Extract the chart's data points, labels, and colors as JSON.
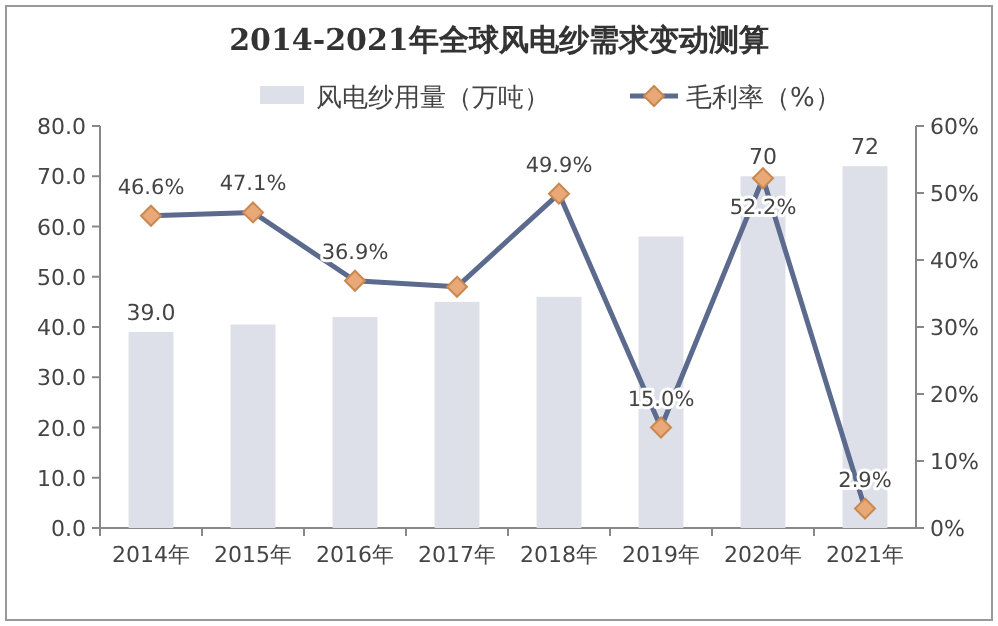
{
  "chart_data": {
    "type": "bar",
    "title": "2014-2021年全球风电纱需求变动测算",
    "legend": "top",
    "marker": "diamond",
    "categories": [
      "2014年",
      "2015年",
      "2016年",
      "2017年",
      "2018年",
      "2019年",
      "2020年",
      "2021年"
    ],
    "series": [
      {
        "name": "风电纱用量（万吨）",
        "color": "#dde0e8",
        "values": [
          39.0,
          40.5,
          42.0,
          45.0,
          46.0,
          58.0,
          70,
          72
        ],
        "value_labels": [
          "39.0",
          null,
          null,
          null,
          null,
          null,
          "70",
          "72"
        ]
      },
      {
        "name": "毛利率（%）",
        "type": "line",
        "axis": "y2",
        "color": "#5c6a8e",
        "values": [
          46.6,
          47.1,
          36.9,
          36.0,
          49.9,
          15.0,
          52.2,
          2.9
        ],
        "value_labels": [
          "46.6%",
          "47.1%",
          "36.9%",
          null,
          "49.9%",
          "15.0%",
          "52.2%",
          "2.9%"
        ]
      }
    ],
    "ylim": [
      0,
      80
    ],
    "yticks": [
      {
        "value": 0,
        "label": "0.0"
      },
      {
        "value": 10,
        "label": "10.0"
      },
      {
        "value": 20,
        "label": "20.0"
      },
      {
        "value": 30,
        "label": "30.0"
      },
      {
        "value": 40,
        "label": "40.0"
      },
      {
        "value": 50,
        "label": "50.0"
      },
      {
        "value": 60,
        "label": "60.0"
      },
      {
        "value": 70,
        "label": "70.0"
      },
      {
        "value": 80,
        "label": "80.0"
      }
    ],
    "y2lim": [
      0,
      60
    ],
    "y2ticks": [
      {
        "value": 0,
        "label": "0%"
      },
      {
        "value": 10,
        "label": "10%"
      },
      {
        "value": 20,
        "label": "20%"
      },
      {
        "value": 30,
        "label": "30%"
      },
      {
        "value": 40,
        "label": "40%"
      },
      {
        "value": 50,
        "label": "50%"
      },
      {
        "value": 60,
        "label": "60%"
      }
    ]
  }
}
